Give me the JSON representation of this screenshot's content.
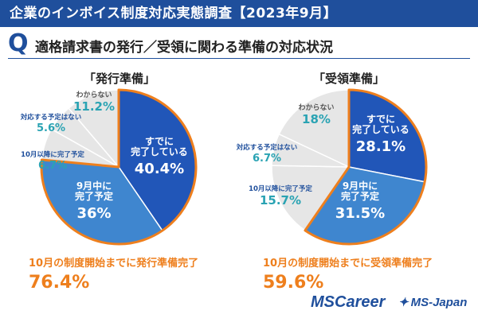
{
  "header": {
    "title": "企業のインボイス制度対応実態調査【2023年9月】"
  },
  "question": {
    "badge": "Q",
    "text": "適格請求書の発行／受領に関わる準備の対応状況"
  },
  "colors": {
    "header_bg": "#1f4f9c",
    "slice_done": "#2156b8",
    "slice_sept": "#3f86cf",
    "slice_light": "#e6e6e6",
    "slice_border": "#ffffff",
    "orange": "#ee7f1d",
    "label_blue": "#1f4f9c",
    "label_teal": "#2aa3b3"
  },
  "chart_data": [
    {
      "type": "pie",
      "title": "「発行準備」",
      "slices": [
        {
          "label": "すでに\n完了している",
          "value": 40.4,
          "value_text": "40.4%",
          "style": "done"
        },
        {
          "label": "9月中に\n完了予定",
          "value": 36,
          "value_text": "36%",
          "style": "sept"
        },
        {
          "label": "10月以降に完了予定",
          "value": 6.7,
          "value_text": "6.7%",
          "style": "light"
        },
        {
          "label": "対応する予定はない",
          "value": 5.6,
          "value_text": "5.6%",
          "style": "light"
        },
        {
          "label": "わからない",
          "value": 11.2,
          "value_text": "11.2%",
          "style": "light"
        }
      ],
      "summary_label": "10月の制度開始までに発行準備完了",
      "summary_value": "76.4%"
    },
    {
      "type": "pie",
      "title": "「受領準備」",
      "slices": [
        {
          "label": "すでに\n完了している",
          "value": 28.1,
          "value_text": "28.1%",
          "style": "done"
        },
        {
          "label": "9月中に\n完了予定",
          "value": 31.5,
          "value_text": "31.5%",
          "style": "sept"
        },
        {
          "label": "10月以降に完了予定",
          "value": 15.7,
          "value_text": "15.7%",
          "style": "light"
        },
        {
          "label": "対応する予定はない",
          "value": 6.7,
          "value_text": "6.7%",
          "style": "light"
        },
        {
          "label": "わからない",
          "value": 18,
          "value_text": "18%",
          "style": "light"
        }
      ],
      "summary_label": "10月の制度開始までに受領準備完了",
      "summary_value": "59.6%"
    }
  ],
  "footer": {
    "logo1": "MSCareer",
    "logo2": "MS-Japan",
    "logo2_mark": "✦"
  }
}
